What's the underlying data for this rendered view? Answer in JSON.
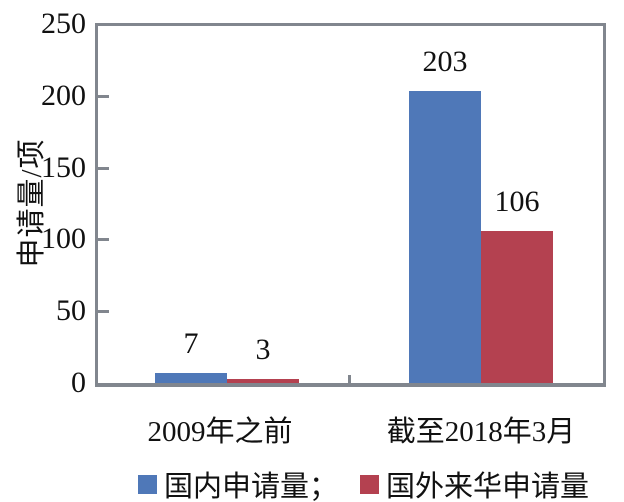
{
  "chart_data": {
    "type": "bar",
    "categories": [
      "2009年之前",
      "截至2018年3月"
    ],
    "series": [
      {
        "name": "国内申请量",
        "color": "#4F78B8",
        "values": [
          7,
          203
        ]
      },
      {
        "name": "国外来华申请量",
        "color": "#B44150",
        "values": [
          3,
          106
        ]
      }
    ],
    "title": "",
    "xlabel": "",
    "ylabel": "申请量/项",
    "ylim": [
      0,
      250
    ],
    "yticks": [
      0,
      50,
      100,
      150,
      200,
      250
    ],
    "grid": "off",
    "data_labels_shown": true,
    "legend_position": "bottom"
  },
  "legend": {
    "items": [
      {
        "label": "国内申请量；",
        "color": "#4F78B8"
      },
      {
        "label": "国外来华申请量",
        "color": "#B44150"
      }
    ]
  },
  "colors": {
    "axis": "#81868E",
    "text": "#111111",
    "background": "#FFFFFF",
    "series_blue": "#4F78B8",
    "series_red": "#B44150"
  }
}
